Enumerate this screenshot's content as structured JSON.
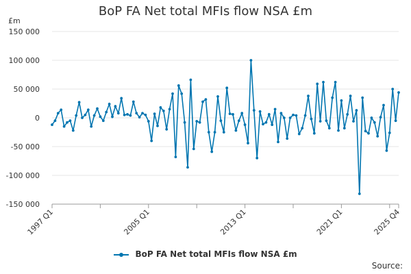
{
  "chart_data": {
    "type": "line",
    "title": "BoP FA Net total MFIs flow NSA £m",
    "ylabel": "£m",
    "ylim": [
      -150000,
      150000
    ],
    "yticks": [
      150000,
      100000,
      50000,
      0,
      -50000,
      -100000,
      -150000
    ],
    "ytick_labels": [
      "150 000",
      "100 000",
      "50 000",
      "0",
      "-50 000",
      "-100 000",
      "-150 000"
    ],
    "xtick_labels": [
      "1997 Q1",
      "2005 Q1",
      "2013 Q1",
      "2021 Q1",
      "2025 Q4"
    ],
    "x_start": "1997 Q1",
    "x_end": "2025 Q4",
    "grid": true,
    "legend_position": "bottom",
    "source_label": "Source:",
    "colors": {
      "series": "#0075b0",
      "grid": "#e6e6e6",
      "axis": "#999999"
    },
    "series": [
      {
        "name": "BoP FA Net total MFIs flow NSA £m",
        "values": [
          -12000,
          -5000,
          8000,
          14000,
          -15000,
          -8000,
          -5000,
          -22000,
          4000,
          27000,
          0,
          5000,
          14000,
          -15000,
          4000,
          16000,
          2000,
          -5000,
          10000,
          24000,
          2000,
          20000,
          8000,
          34000,
          5000,
          6000,
          4000,
          28000,
          8000,
          1000,
          8000,
          5000,
          -6000,
          -40000,
          7000,
          -14000,
          18000,
          12000,
          -20000,
          15000,
          42000,
          -68000,
          56000,
          42000,
          -8000,
          -86000,
          66000,
          -54000,
          -6000,
          -8000,
          28000,
          32000,
          -25000,
          -59000,
          -25000,
          37000,
          -5000,
          -25000,
          52000,
          7000,
          6000,
          -22000,
          -5000,
          8000,
          -12000,
          -44000,
          100000,
          13000,
          -70000,
          11000,
          -11000,
          -8000,
          6000,
          -12000,
          15000,
          -42000,
          8000,
          0,
          -36000,
          0,
          5000,
          4000,
          -28000,
          -18000,
          4000,
          38000,
          -2000,
          -27000,
          59000,
          -6000,
          62000,
          -5000,
          -18000,
          35000,
          62000,
          -22000,
          30000,
          -18000,
          6000,
          38000,
          -6000,
          13000,
          -132000,
          35000,
          -23000,
          -27000,
          0,
          -8000,
          -32000,
          1000,
          22000,
          -57000,
          -26000,
          50000,
          -5000,
          44000
        ]
      }
    ]
  }
}
